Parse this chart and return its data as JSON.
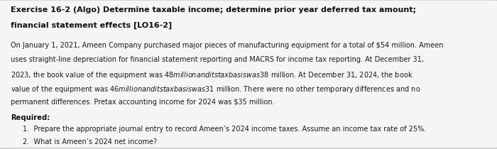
{
  "background_color": "#e8e8e8",
  "box_color": "#f5f5f5",
  "title_line1": "Exercise 16-2 (Algo) Determine taxable income; determine prior year deferred tax amount;",
  "title_line2": "financial statement effects [LO16-2]",
  "body_line1": "On January 1, 2021, Ameen Company purchased major pieces of manufacturing equipment for a total of $54 million. Ameen",
  "body_line2": "uses straight-line depreciation for financial statement reporting and MACRS for income tax reporting. At December 31,",
  "body_line3": "2023, the book value of the equipment was $48 million and its tax basis was $38 million. At December 31, 2024, the book",
  "body_line4": "value of the equipment was $46 million and its tax basis was $31 million. There were no other temporary differences and no",
  "body_line5": "permanent differences. Pretax accounting income for 2024 was $35 million.",
  "required_label": "Required:",
  "item1": "1.  Prepare the appropriate journal entry to record Ameen’s 2024 income taxes. Assume an income tax rate of 25%.",
  "item2": "2.  What is Ameen’s 2024 net income?",
  "title_fontsize": 8.0,
  "body_fontsize": 7.0,
  "required_fontsize": 7.2,
  "items_fontsize": 7.0
}
